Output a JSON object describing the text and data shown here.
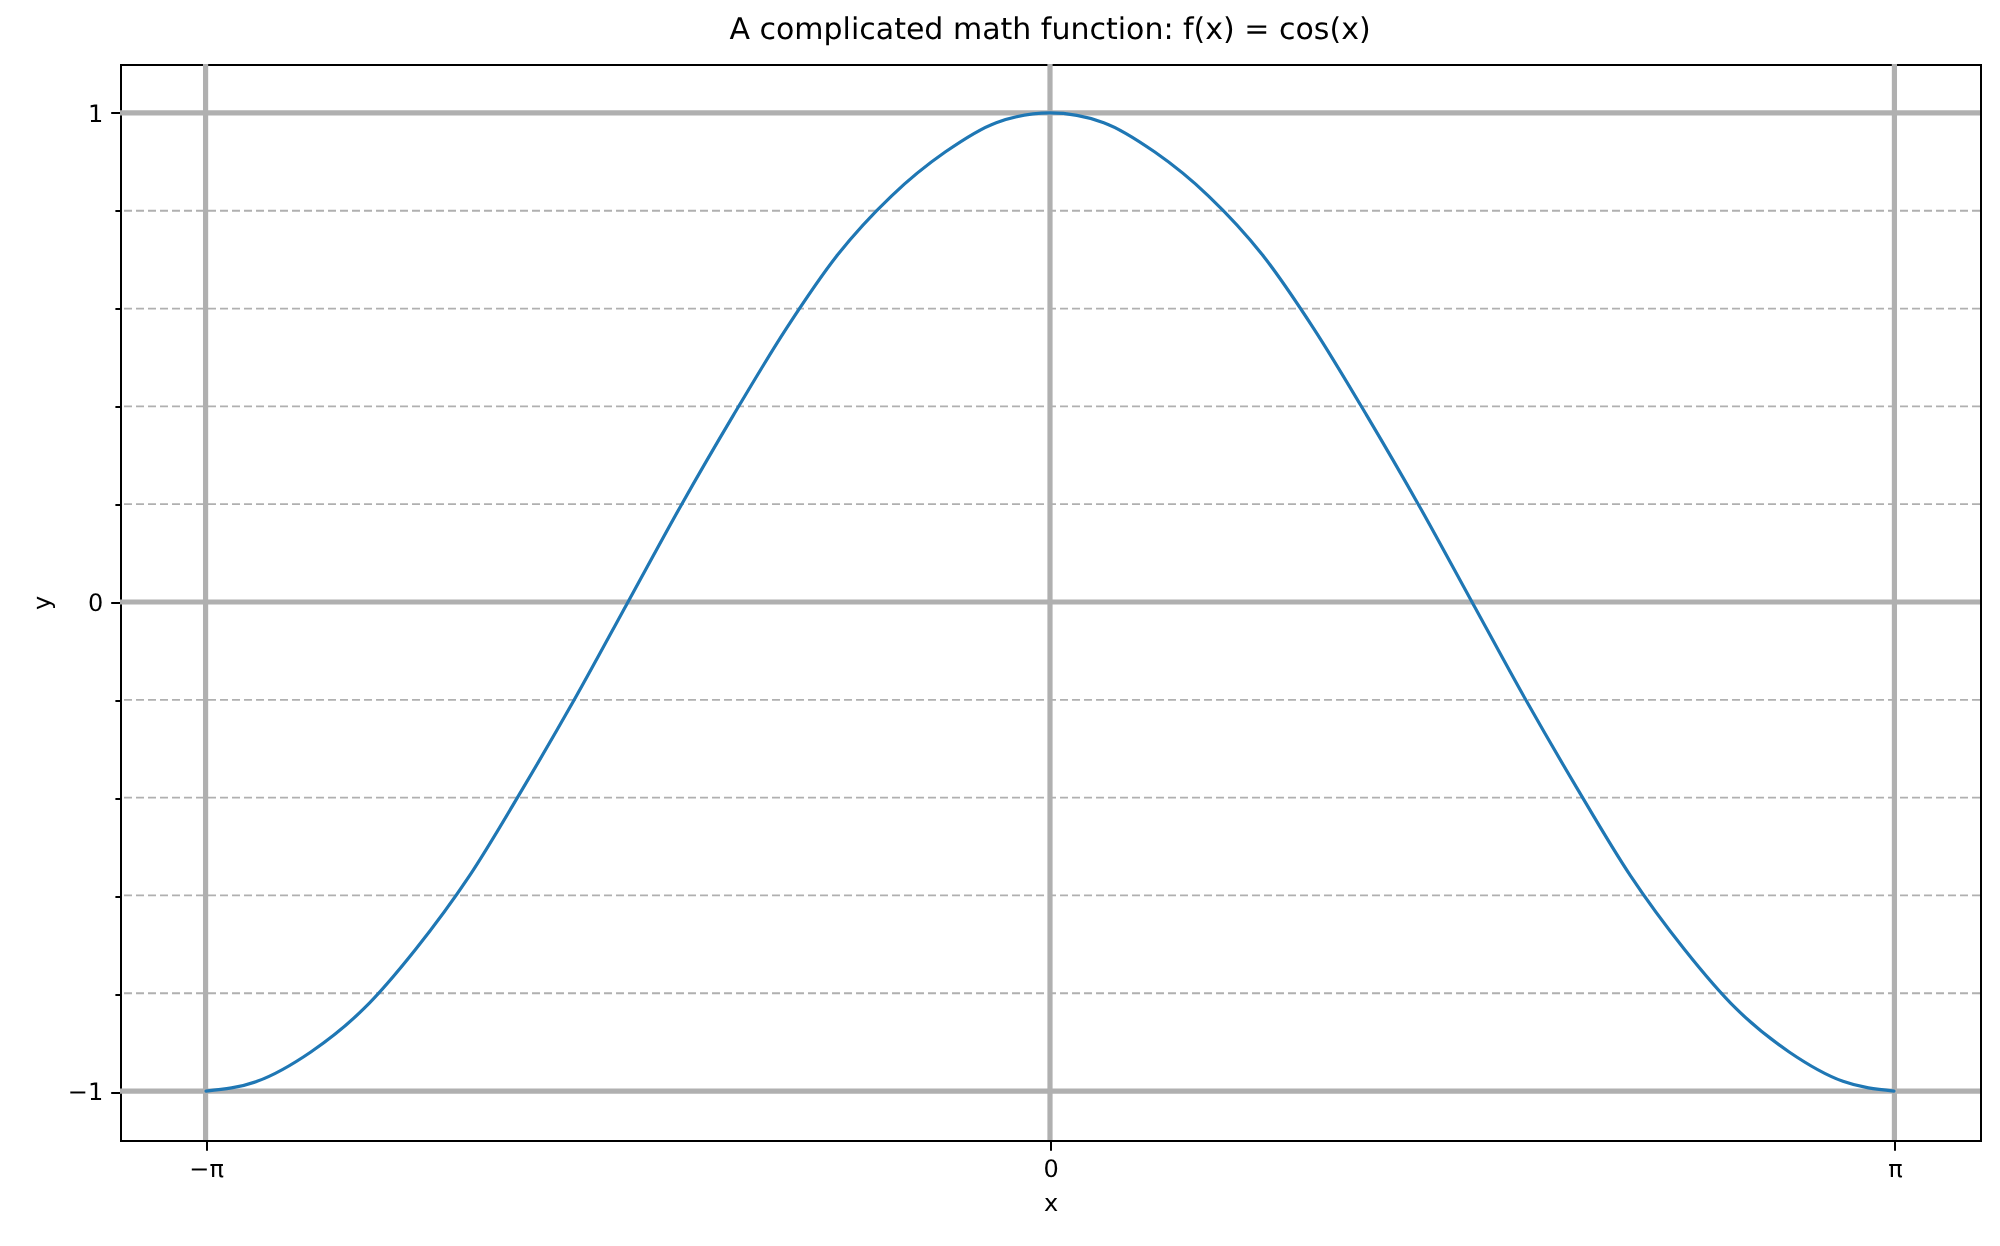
{
  "chart_data": {
    "type": "line",
    "title": "A complicated math function: f(x) = cos(x)",
    "xlabel": "x",
    "ylabel": "y",
    "x": [
      -3.14,
      -2.95,
      -2.75,
      -2.55,
      -2.36,
      -2.16,
      -1.96,
      -1.77,
      -1.57,
      -1.37,
      -1.18,
      -0.98,
      -0.79,
      -0.59,
      -0.39,
      -0.2,
      0,
      0.2,
      0.39,
      0.59,
      0.79,
      0.98,
      1.18,
      1.37,
      1.57,
      1.77,
      1.96,
      2.16,
      2.36,
      2.55,
      2.75,
      2.95,
      3.14
    ],
    "series": [
      {
        "color": "#1f77b4",
        "values": [
          -1,
          -0.98,
          -0.92,
          -0.83,
          -0.71,
          -0.56,
          -0.38,
          -0.2,
          0,
          0.2,
          0.38,
          0.56,
          0.71,
          0.83,
          0.92,
          0.98,
          1,
          0.98,
          0.92,
          0.83,
          0.71,
          0.56,
          0.38,
          0.2,
          0,
          -0.2,
          -0.38,
          -0.56,
          -0.71,
          -0.83,
          -0.92,
          -0.98,
          -1
        ]
      }
    ],
    "xlim": [
      -3.46,
      3.46
    ],
    "ylim": [
      -1.1,
      1.1
    ],
    "xticks": [
      {
        "value": -3.1416,
        "label": "−π"
      },
      0,
      {
        "value": 3.1416,
        "label": "π"
      }
    ],
    "yticks": [
      {
        "value": -1,
        "label": "−1"
      },
      {
        "value": -0.8,
        "label": null
      },
      {
        "value": -0.6,
        "label": null
      },
      {
        "value": -0.4,
        "label": null
      },
      {
        "value": -0.2,
        "label": null
      },
      0,
      {
        "value": 0.2,
        "label": null
      },
      {
        "value": 0.4,
        "label": null
      },
      {
        "value": 0.6,
        "label": null
      },
      {
        "value": 0.8,
        "label": null
      },
      1
    ],
    "grid": true
  }
}
